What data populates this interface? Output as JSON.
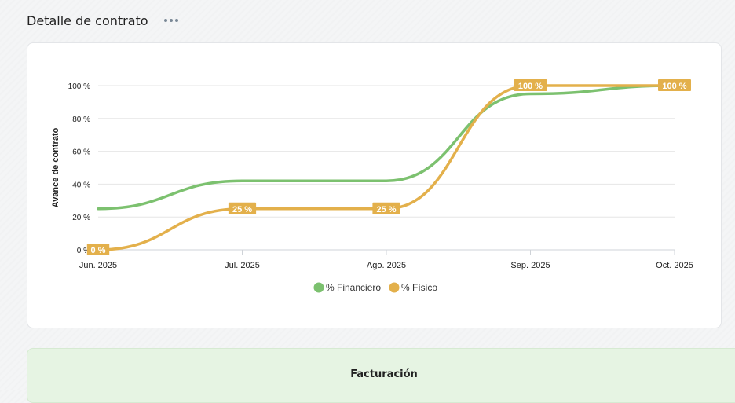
{
  "header": {
    "title": "Detalle de contrato"
  },
  "panel": {
    "title": "Facturación"
  },
  "colors": {
    "financiero": "#7cc16f",
    "fisico": "#e3b04b",
    "grid": "#e6e6e6"
  },
  "chart_data": {
    "type": "line",
    "categories": [
      "Jun. 2025",
      "Jul. 2025",
      "Ago. 2025",
      "Sep. 2025",
      "Oct. 2025"
    ],
    "ylabel": "Avance de contrato",
    "xlabel": "",
    "ylim": [
      0,
      100
    ],
    "yticks": [
      0,
      20,
      40,
      60,
      80,
      100
    ],
    "ytick_labels": [
      "0 %",
      "20 %",
      "40 %",
      "60 %",
      "80 %",
      "100 %"
    ],
    "grid": true,
    "legend_position": "bottom",
    "series": [
      {
        "name": "% Financiero",
        "values": [
          25,
          42,
          42,
          95,
          100
        ],
        "labels": []
      },
      {
        "name": "% Físico",
        "values": [
          0,
          25,
          25,
          100,
          100
        ],
        "labels": [
          "0 %",
          "25 %",
          "25 %",
          "100 %",
          "100 %"
        ]
      }
    ]
  }
}
